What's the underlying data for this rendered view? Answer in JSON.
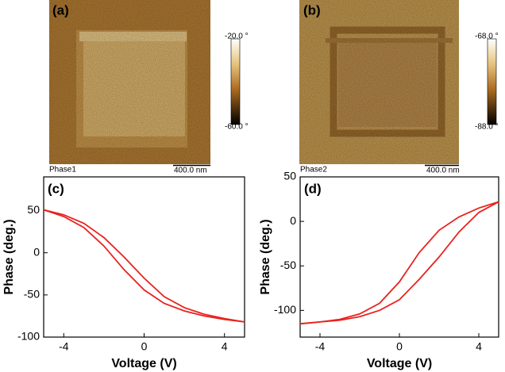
{
  "images": [
    {
      "label": "(a)",
      "channel": "Phase1",
      "scale_bar": "400.0 nm",
      "colorbar_max": "-20.0 °",
      "colorbar_min": "-60.0 °"
    },
    {
      "label": "(b)",
      "channel": "Phase2",
      "scale_bar": "400.0 nm",
      "colorbar_max": "-68.0 °",
      "colorbar_min": "-88.0 °"
    }
  ],
  "chart_data": [
    {
      "type": "line",
      "label": "(c)",
      "x_label": "Voltage (V)",
      "y_label": "Phase (deg.)",
      "x": [
        -5,
        -4,
        -3,
        -2,
        -1,
        0,
        1,
        2,
        3,
        4,
        5
      ],
      "series": [
        {
          "color": "#e8231f",
          "values": [
            51,
            45,
            35,
            18,
            -5,
            -30,
            -52,
            -65,
            -73,
            -78,
            -82
          ]
        },
        {
          "color": "#e8231f",
          "values": [
            51,
            43,
            30,
            8,
            -20,
            -44,
            -60,
            -69,
            -75,
            -79,
            -82
          ]
        }
      ],
      "xlim": [
        -5,
        5
      ],
      "xticks": [
        -4,
        0,
        4
      ],
      "ylim": [
        -100,
        90
      ],
      "yticks": [
        -100,
        -50,
        0,
        50
      ]
    },
    {
      "type": "line",
      "label": "(d)",
      "x_label": "Voltage (V)",
      "y_label": "Phase (deg.)",
      "x": [
        -5,
        -4,
        -3,
        -2,
        -1,
        0,
        1,
        2,
        3,
        4,
        5
      ],
      "series": [
        {
          "color": "#e8231f",
          "values": [
            -115,
            -113,
            -110,
            -104,
            -92,
            -68,
            -35,
            -10,
            5,
            15,
            22
          ]
        },
        {
          "color": "#e8231f",
          "values": [
            -115,
            -113,
            -111,
            -107,
            -100,
            -88,
            -65,
            -40,
            -12,
            10,
            22
          ]
        }
      ],
      "xlim": [
        -5,
        5
      ],
      "xticks": [
        -4,
        0,
        4
      ],
      "ylim": [
        -130,
        50
      ],
      "yticks": [
        -100,
        -50,
        0,
        50
      ]
    }
  ]
}
